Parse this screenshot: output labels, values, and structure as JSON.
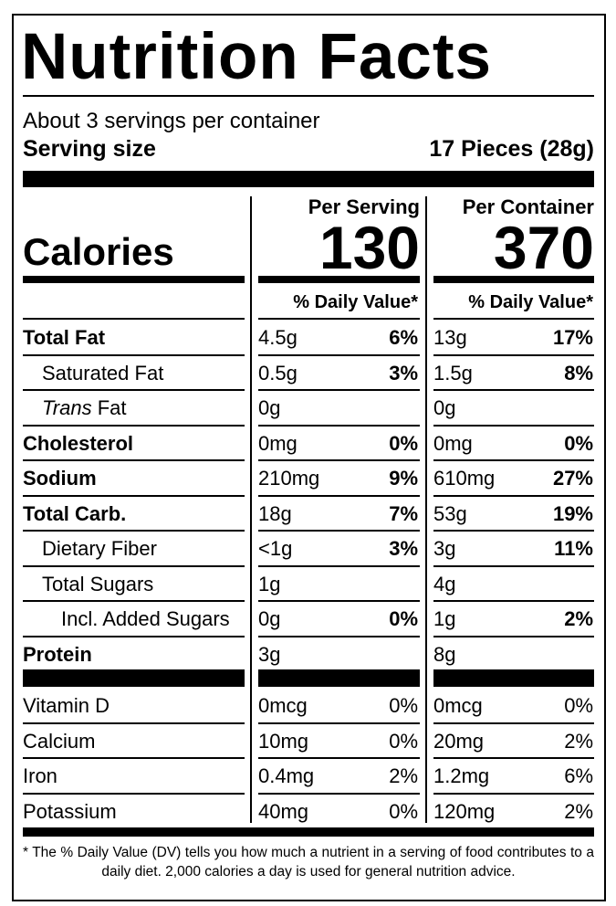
{
  "header": {
    "title": "Nutrition Facts",
    "servings": "About 3 servings per container",
    "serving_size_label": "Serving size",
    "serving_size": "17 Pieces (28g)"
  },
  "columns": [
    "Per Serving",
    "Per Container"
  ],
  "calories": {
    "label": "Calories",
    "per_serving": 130,
    "per_container": 370
  },
  "daily_value_header": "% Daily Value*",
  "nutrients": [
    {
      "name": "Total Fat",
      "per_serving": {
        "amount": "4.5g",
        "dv": "6%"
      },
      "per_container": {
        "amount": "13g",
        "dv": "17%"
      }
    },
    {
      "name": "Saturated Fat",
      "per_serving": {
        "amount": "0.5g",
        "dv": "3%"
      },
      "per_container": {
        "amount": "1.5g",
        "dv": "8%"
      }
    },
    {
      "name_italic": "Trans",
      "name": "Fat",
      "per_serving": {
        "amount": "0g"
      },
      "per_container": {
        "amount": "0g"
      }
    },
    {
      "name": "Cholesterol",
      "per_serving": {
        "amount": "0mg",
        "dv": "0%"
      },
      "per_container": {
        "amount": "0mg",
        "dv": "0%"
      }
    },
    {
      "name": "Sodium",
      "per_serving": {
        "amount": "210mg",
        "dv": "9%"
      },
      "per_container": {
        "amount": "610mg",
        "dv": "27%"
      }
    },
    {
      "name": "Total Carb.",
      "per_serving": {
        "amount": "18g",
        "dv": "7%"
      },
      "per_container": {
        "amount": "53g",
        "dv": "19%"
      }
    },
    {
      "name": "Dietary Fiber",
      "per_serving": {
        "amount": "<1g",
        "dv": "3%"
      },
      "per_container": {
        "amount": "3g",
        "dv": "11%"
      }
    },
    {
      "name": "Total Sugars",
      "per_serving": {
        "amount": "1g"
      },
      "per_container": {
        "amount": "4g"
      }
    },
    {
      "name": "Incl. Added Sugars",
      "per_serving": {
        "amount": "0g",
        "dv": "0%"
      },
      "per_container": {
        "amount": "1g",
        "dv": "2%"
      }
    },
    {
      "name": "Protein",
      "per_serving": {
        "amount": "3g"
      },
      "per_container": {
        "amount": "8g"
      }
    }
  ],
  "vitamins": [
    {
      "name": "Vitamin D",
      "per_serving": {
        "amount": "0mcg",
        "dv": "0%"
      },
      "per_container": {
        "amount": "0mcg",
        "dv": "0%"
      }
    },
    {
      "name": "Calcium",
      "per_serving": {
        "amount": "10mg",
        "dv": "0%"
      },
      "per_container": {
        "amount": "20mg",
        "dv": "2%"
      }
    },
    {
      "name": "Iron",
      "per_serving": {
        "amount": "0.4mg",
        "dv": "2%"
      },
      "per_container": {
        "amount": "1.2mg",
        "dv": "6%"
      }
    },
    {
      "name": "Potassium",
      "per_serving": {
        "amount": "40mg",
        "dv": "0%"
      },
      "per_container": {
        "amount": "120mg",
        "dv": "2%"
      }
    }
  ],
  "footnote": "* The % Daily Value (DV) tells you how much a nutrient in a serving of food contributes to a daily diet. 2,000 calories a day is used for general nutrition advice."
}
